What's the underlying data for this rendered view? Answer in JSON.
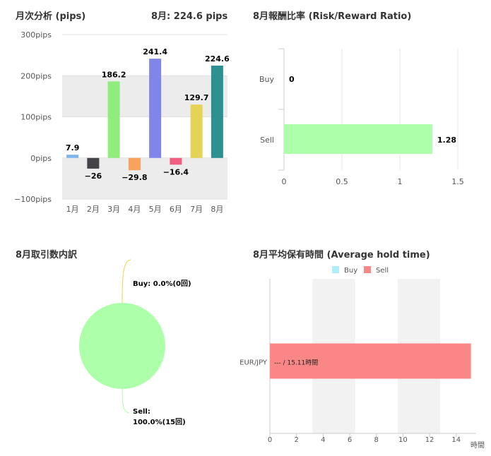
{
  "monthly": {
    "title": "月次分析 (pips)",
    "summary": "8月:  224.6 pips"
  },
  "risk": {
    "title": "8月報酬比率 (Risk/Reward Ratio)"
  },
  "trades": {
    "title": "8月取引数内訳"
  },
  "hold": {
    "title": "8月平均保有時間 (Average hold time)"
  },
  "chart_data": [
    {
      "id": "monthly",
      "type": "bar",
      "categories": [
        "1月",
        "2月",
        "3月",
        "4月",
        "5月",
        "6月",
        "7月",
        "8月"
      ],
      "values": [
        7.9,
        -26,
        186.2,
        -29.8,
        241.4,
        -16.4,
        129.7,
        224.6
      ],
      "labels": [
        "7.9",
        "−26",
        "186.2",
        "−29.8",
        "241.4",
        "−16.4",
        "129.7",
        "224.6"
      ],
      "colors": [
        "#7cb5ec",
        "#434348",
        "#90ed7d",
        "#f7a35c",
        "#8085e9",
        "#f15c80",
        "#e4d354",
        "#2b908f"
      ],
      "ylim": [
        -100,
        300
      ],
      "yticks": [
        -100,
        0,
        100,
        200,
        300
      ],
      "ytick_labels": [
        "−100pips",
        "0pips",
        "100pips",
        "200pips",
        "300pips"
      ],
      "plot_bands": [
        [
          -100,
          0
        ],
        [
          100,
          200
        ]
      ]
    },
    {
      "id": "risk",
      "type": "bar",
      "orientation": "horizontal",
      "categories": [
        "Buy",
        "Sell"
      ],
      "values": [
        0,
        1.28
      ],
      "labels": [
        "0",
        "1.28"
      ],
      "color": "#adffa9",
      "xlim": [
        0,
        1.5
      ],
      "xticks": [
        0,
        0.5,
        1,
        1.5
      ],
      "xtick_labels": [
        "0",
        "0.5",
        "1",
        "1.5"
      ]
    },
    {
      "id": "trades",
      "type": "pie",
      "slices": [
        {
          "name": "Buy",
          "value": 0,
          "label_line1": "Buy: 0.0%(0回)",
          "label_line2": ""
        },
        {
          "name": "Sell",
          "value": 15,
          "label_line1": "Sell:",
          "label_line2": "100.0%(15回)"
        }
      ],
      "color": "#adffa9"
    },
    {
      "id": "hold",
      "type": "bar",
      "orientation": "horizontal",
      "categories": [
        "EUR/JPY"
      ],
      "series": [
        {
          "name": "Buy",
          "values": [
            0
          ],
          "color": "#aeeef8"
        },
        {
          "name": "Sell",
          "values": [
            15.11
          ],
          "color": "#fa8787"
        }
      ],
      "bar_label": "--- / 15.11時間",
      "xlim": [
        0,
        15.5
      ],
      "xticks": [
        0,
        2,
        4,
        6,
        8,
        10,
        12,
        14
      ],
      "xtick_labels": [
        "0",
        "2",
        "4",
        "6",
        "8",
        "10",
        "12",
        "14"
      ],
      "xunit": "時間",
      "plot_bands": [
        [
          3.2,
          6.4
        ],
        [
          9.6,
          12.8
        ]
      ],
      "legend": "top"
    }
  ]
}
